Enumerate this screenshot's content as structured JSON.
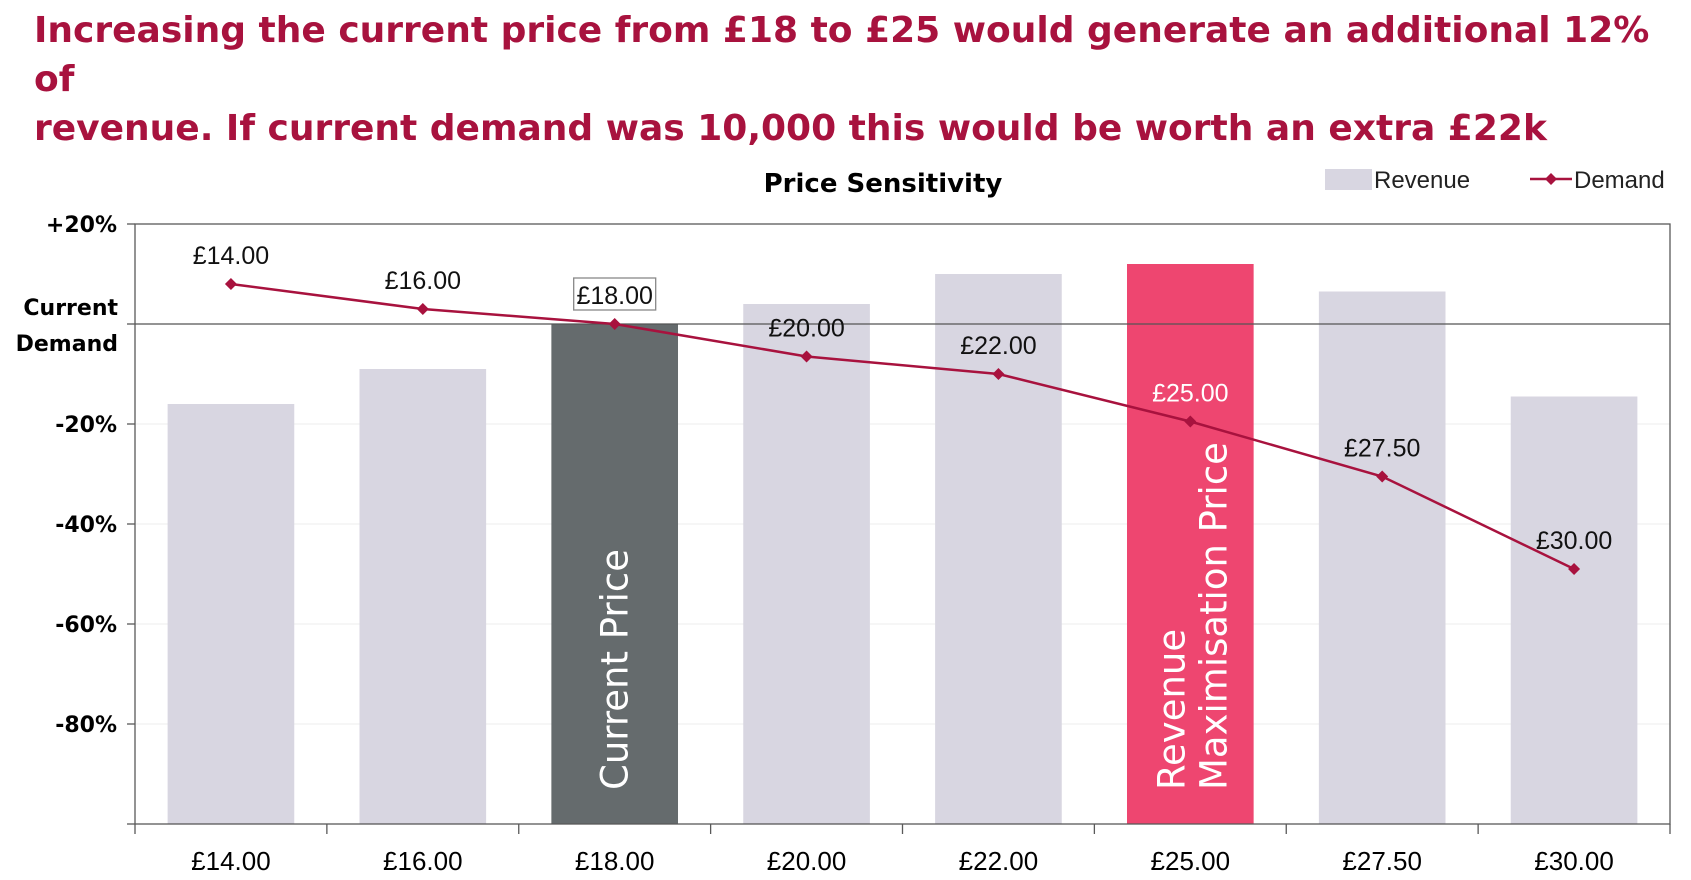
{
  "headline": {
    "line1": "Increasing the current price from £18 to £25 would generate an additional 12% of",
    "line2": "revenue.  If current demand was 10,000 this would be worth an extra £22k"
  },
  "colors": {
    "headline": "#a8123e",
    "revenue_bar": "#d8d6e1",
    "current_bar": "#656b6d",
    "max_bar": "#ee4670",
    "demand_line": "#a8123e",
    "axis": "#595959",
    "grid": "#ececec"
  },
  "chart_data": {
    "type": "bar",
    "title": "Price Sensitivity",
    "categories": [
      "£14.00",
      "£16.00",
      "£18.00",
      "£20.00",
      "£22.00",
      "£25.00",
      "£27.50",
      "£30.00"
    ],
    "series": [
      {
        "name": "Revenue",
        "type": "bar",
        "values": [
          -16,
          -9,
          0,
          4,
          10,
          12,
          6.5,
          -14.5
        ]
      },
      {
        "name": "Demand",
        "type": "line",
        "marker": "diamond",
        "values": [
          8,
          3,
          0,
          -6.5,
          -10,
          -19.5,
          -30.5,
          -49
        ],
        "labels": [
          "£14.00",
          "£16.00",
          "£18.00",
          "£20.00",
          "£22.00",
          "£25.00",
          "£27.50",
          "£30.00"
        ]
      }
    ],
    "highlight": {
      "current_index": 2,
      "current_label": "Current Price",
      "max_index": 5,
      "max_label_line1": "Revenue",
      "max_label_line2": "Maximisation Price"
    },
    "y_ticks": [
      {
        "value": 20,
        "label": "+20%"
      },
      {
        "value": 0,
        "label_line1": "Current",
        "label_line2": "Demand"
      },
      {
        "value": -20,
        "label": "-20%"
      },
      {
        "value": -40,
        "label": "-40%"
      },
      {
        "value": -60,
        "label": "-60%"
      },
      {
        "value": -80,
        "label": "-80%"
      }
    ],
    "ylim": [
      -100,
      20
    ],
    "grid": true,
    "legend": "top-right"
  }
}
